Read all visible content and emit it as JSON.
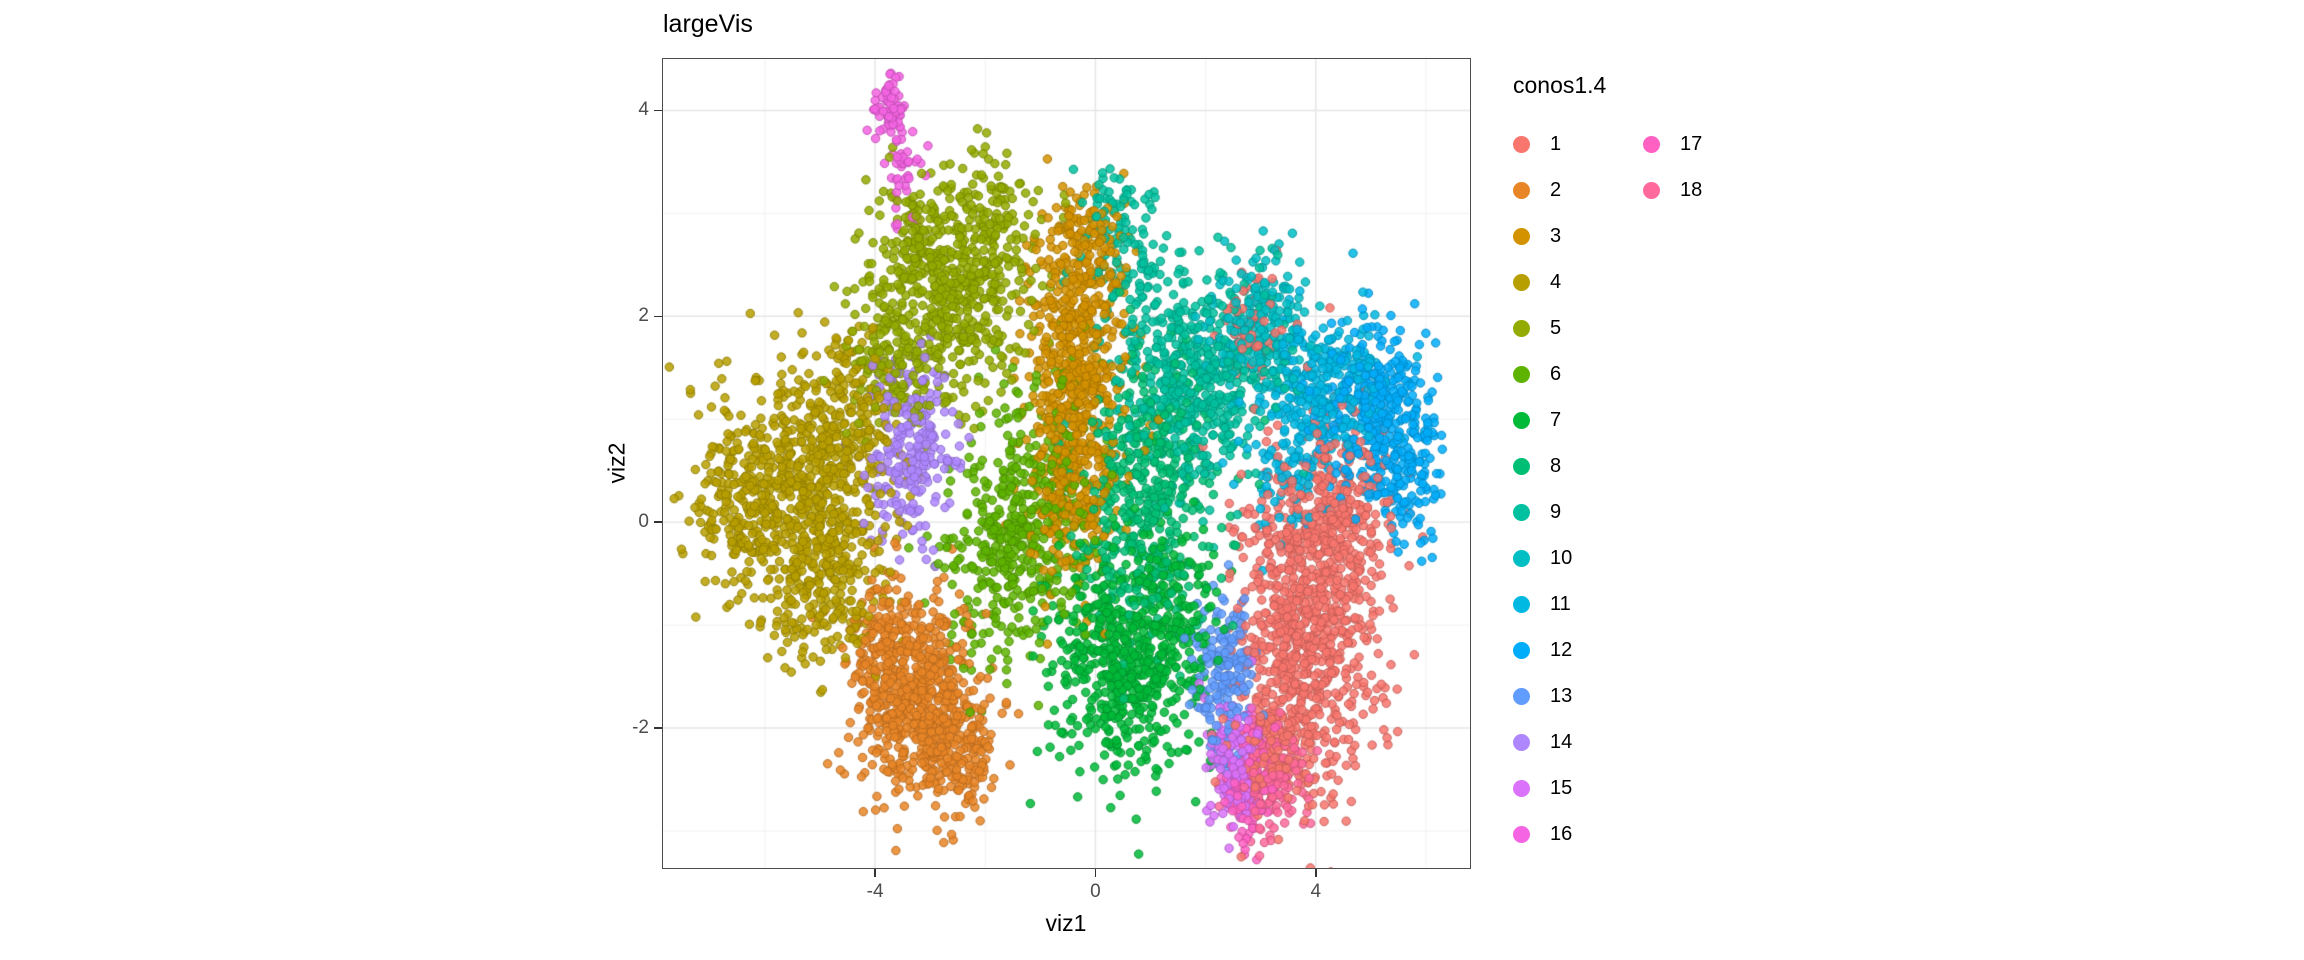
{
  "chart_data": {
    "type": "scatter",
    "title": "largeVis",
    "xlabel": "viz1",
    "ylabel": "viz2",
    "xlim": [
      -7.85,
      6.8
    ],
    "ylim": [
      -3.36,
      4.5
    ],
    "x_ticks": [
      {
        "v": -4,
        "label": "-4"
      },
      {
        "v": 0,
        "label": "0"
      },
      {
        "v": 4,
        "label": "4"
      }
    ],
    "y_ticks": [
      {
        "v": -2,
        "label": "-2"
      },
      {
        "v": 0,
        "label": "0"
      },
      {
        "v": 2,
        "label": "2"
      },
      {
        "v": 4,
        "label": "4"
      }
    ],
    "x_minor_ticks": [
      -6,
      -2,
      2,
      6
    ],
    "y_minor_ticks": [
      -3,
      -1,
      1,
      3
    ],
    "grid": {
      "background": "#FFFFFF",
      "major_color": "#E5E5E5",
      "minor_color": "#F2F2F2"
    },
    "panel_border_color": "#4D4D4D",
    "point": {
      "radius": 4.2,
      "alpha": 0.85
    },
    "legend": {
      "title": "conos1.4",
      "position": "right",
      "rows_per_column": 16
    },
    "series": [
      {
        "name": "1",
        "color": "#F8766D",
        "blobs": [
          {
            "cx": 3.85,
            "cy": -0.95,
            "sx": 0.65,
            "sy": 0.8,
            "n": 950
          },
          {
            "cx": 4.55,
            "cy": 0.15,
            "sx": 0.45,
            "sy": 0.45,
            "n": 150
          },
          {
            "cx": 3.3,
            "cy": -2.2,
            "sx": 0.35,
            "sy": 0.3,
            "n": 120
          },
          {
            "cx": 2.8,
            "cy": 1.8,
            "sx": 0.28,
            "sy": 0.25,
            "n": 60
          }
        ]
      },
      {
        "name": "2",
        "color": "#E88526",
        "blobs": [
          {
            "cx": -3.3,
            "cy": -1.65,
            "sx": 0.55,
            "sy": 0.5,
            "n": 620
          },
          {
            "cx": -2.5,
            "cy": -2.2,
            "sx": 0.4,
            "sy": 0.3,
            "n": 160
          },
          {
            "cx": -3.9,
            "cy": -1.2,
            "sx": 0.3,
            "sy": 0.3,
            "n": 80
          }
        ]
      },
      {
        "name": "3",
        "color": "#D39200",
        "blobs": [
          {
            "cx": -0.35,
            "cy": 1.25,
            "sx": 0.45,
            "sy": 0.8,
            "n": 620
          },
          {
            "cx": -0.15,
            "cy": 2.7,
            "sx": 0.35,
            "sy": 0.3,
            "n": 120
          },
          {
            "cx": -0.6,
            "cy": 0.2,
            "sx": 0.3,
            "sy": 0.3,
            "n": 80
          }
        ]
      },
      {
        "name": "4",
        "color": "#B79F00",
        "blobs": [
          {
            "cx": -5.4,
            "cy": 0.3,
            "sx": 0.8,
            "sy": 0.55,
            "n": 650
          },
          {
            "cx": -4.9,
            "cy": -0.65,
            "sx": 0.55,
            "sy": 0.4,
            "n": 200
          },
          {
            "cx": -4.5,
            "cy": 1.05,
            "sx": 0.5,
            "sy": 0.4,
            "n": 150
          },
          {
            "cx": -6.6,
            "cy": 0.2,
            "sx": 0.4,
            "sy": 0.4,
            "n": 100
          }
        ]
      },
      {
        "name": "5",
        "color": "#93AA00",
        "blobs": [
          {
            "cx": -2.7,
            "cy": 2.2,
            "sx": 0.8,
            "sy": 0.5,
            "n": 520
          },
          {
            "cx": -3.7,
            "cy": 1.5,
            "sx": 0.45,
            "sy": 0.4,
            "n": 120
          },
          {
            "cx": -1.9,
            "cy": 3.0,
            "sx": 0.4,
            "sy": 0.3,
            "n": 100
          },
          {
            "cx": -3.2,
            "cy": 2.9,
            "sx": 0.3,
            "sy": 0.25,
            "n": 60
          }
        ]
      },
      {
        "name": "6",
        "color": "#5EB300",
        "blobs": [
          {
            "cx": -1.6,
            "cy": -0.35,
            "sx": 0.6,
            "sy": 0.55,
            "n": 330
          },
          {
            "cx": -1.0,
            "cy": 0.5,
            "sx": 0.5,
            "sy": 0.5,
            "n": 150
          }
        ]
      },
      {
        "name": "7",
        "color": "#00BA38",
        "blobs": [
          {
            "cx": 0.55,
            "cy": -1.35,
            "sx": 0.65,
            "sy": 0.55,
            "n": 580
          },
          {
            "cx": 1.45,
            "cy": -0.85,
            "sx": 0.4,
            "sy": 0.4,
            "n": 120
          }
        ]
      },
      {
        "name": "8",
        "color": "#00BF74",
        "blobs": [
          {
            "cx": 0.95,
            "cy": 0.3,
            "sx": 0.55,
            "sy": 0.7,
            "n": 430
          }
        ]
      },
      {
        "name": "9",
        "color": "#00C19F",
        "blobs": [
          {
            "cx": 1.9,
            "cy": 1.4,
            "sx": 0.7,
            "sy": 0.5,
            "n": 470
          },
          {
            "cx": 0.65,
            "cy": 2.35,
            "sx": 0.5,
            "sy": 0.35,
            "n": 110
          },
          {
            "cx": 0.35,
            "cy": 3.15,
            "sx": 0.3,
            "sy": 0.22,
            "n": 40
          }
        ]
      },
      {
        "name": "10",
        "color": "#00BFC4",
        "blobs": [
          {
            "cx": 3.0,
            "cy": 1.9,
            "sx": 0.45,
            "sy": 0.33,
            "n": 210
          }
        ]
      },
      {
        "name": "11",
        "color": "#00B9E3",
        "blobs": [
          {
            "cx": 4.2,
            "cy": 1.3,
            "sx": 0.5,
            "sy": 0.4,
            "n": 270
          },
          {
            "cx": 3.45,
            "cy": 0.6,
            "sx": 0.35,
            "sy": 0.45,
            "n": 100
          }
        ]
      },
      {
        "name": "12",
        "color": "#00ADFA",
        "blobs": [
          {
            "cx": 5.15,
            "cy": 1.0,
            "sx": 0.5,
            "sy": 0.45,
            "n": 360
          },
          {
            "cx": 5.75,
            "cy": 0.45,
            "sx": 0.28,
            "sy": 0.4,
            "n": 80
          }
        ]
      },
      {
        "name": "13",
        "color": "#619CFF",
        "blobs": [
          {
            "cx": 2.35,
            "cy": -1.45,
            "sx": 0.28,
            "sy": 0.42,
            "n": 180
          }
        ]
      },
      {
        "name": "14",
        "color": "#AE87FF",
        "blobs": [
          {
            "cx": -3.35,
            "cy": 0.75,
            "sx": 0.35,
            "sy": 0.45,
            "n": 250
          }
        ]
      },
      {
        "name": "15",
        "color": "#DB72FB",
        "blobs": [
          {
            "cx": 2.5,
            "cy": -2.3,
            "sx": 0.22,
            "sy": 0.33,
            "n": 140
          }
        ]
      },
      {
        "name": "16",
        "color": "#F564E3",
        "blobs": [
          {
            "cx": -3.75,
            "cy": 4.0,
            "sx": 0.15,
            "sy": 0.17,
            "n": 70
          },
          {
            "cx": -3.5,
            "cy": 3.3,
            "sx": 0.17,
            "sy": 0.25,
            "n": 40
          }
        ]
      },
      {
        "name": "17",
        "color": "#FF61C3",
        "blobs": [
          {
            "cx": 2.75,
            "cy": -2.55,
            "sx": 0.25,
            "sy": 0.28,
            "n": 130
          }
        ]
      },
      {
        "name": "18",
        "color": "#FF699C",
        "blobs": [
          {
            "cx": 3.15,
            "cy": -2.5,
            "sx": 0.32,
            "sy": 0.27,
            "n": 150
          }
        ]
      }
    ]
  }
}
